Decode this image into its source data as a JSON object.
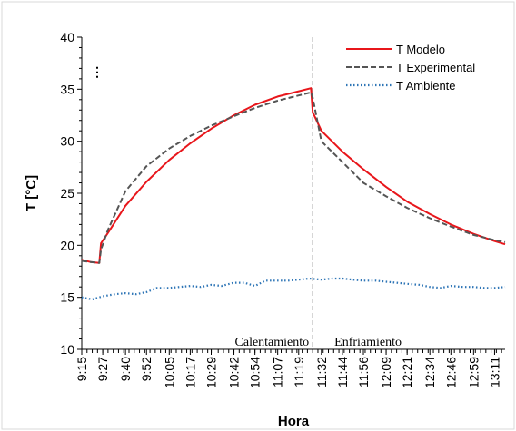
{
  "chart_data": {
    "type": "line",
    "xlabel": "Hora",
    "ylabel": "T [°C]",
    "ylim": [
      10,
      40
    ],
    "yticks": [
      10,
      15,
      20,
      25,
      30,
      35,
      40
    ],
    "x_tick_labels": [
      "9:15",
      "9:27",
      "9:40",
      "9:52",
      "10:05",
      "10:17",
      "10:29",
      "10:42",
      "10:54",
      "11:07",
      "11:19",
      "11:32",
      "11:44",
      "11:56",
      "12:09",
      "12:21",
      "12:34",
      "12:46",
      "12:59",
      "13:11"
    ],
    "x_time_range": [
      "9:15",
      "13:17"
    ],
    "grid": false,
    "legend_position": "top-right",
    "divider_time": "11:27",
    "annotations": [
      "Calentamiento",
      "Enfriamiento"
    ],
    "vertical_ellipsis": "⋮",
    "series": [
      {
        "name": "T Modelo",
        "color": "#e8161b",
        "style": "solid",
        "x": [
          "9:15",
          "9:20",
          "9:25",
          "9:26",
          "9:30",
          "9:40",
          "9:52",
          "10:05",
          "10:17",
          "10:29",
          "10:42",
          "10:54",
          "11:07",
          "11:19",
          "11:26",
          "11:27",
          "11:32",
          "11:44",
          "11:56",
          "12:09",
          "12:21",
          "12:34",
          "12:46",
          "12:59",
          "13:11",
          "13:17"
        ],
        "y": [
          18.6,
          18.4,
          18.3,
          20.2,
          21.2,
          23.8,
          26.1,
          28.2,
          29.8,
          31.2,
          32.5,
          33.5,
          34.3,
          34.8,
          35.1,
          32.8,
          31.0,
          29.0,
          27.3,
          25.6,
          24.2,
          23.0,
          22.0,
          21.1,
          20.4,
          20.1
        ]
      },
      {
        "name": "T Experimental",
        "color": "#555555",
        "style": "dashed",
        "x": [
          "9:15",
          "9:20",
          "9:25",
          "9:26",
          "9:30",
          "9:40",
          "9:52",
          "10:05",
          "10:17",
          "10:29",
          "10:42",
          "10:54",
          "11:07",
          "11:19",
          "11:26",
          "11:27",
          "11:32",
          "11:44",
          "11:56",
          "12:09",
          "12:21",
          "12:34",
          "12:46",
          "12:59",
          "13:11",
          "13:17"
        ],
        "y": [
          18.5,
          18.4,
          18.3,
          19.6,
          21.5,
          25.2,
          27.6,
          29.3,
          30.5,
          31.5,
          32.4,
          33.2,
          33.9,
          34.4,
          34.7,
          34.2,
          30.0,
          28.0,
          26.0,
          24.7,
          23.6,
          22.6,
          21.8,
          21.0,
          20.5,
          20.3
        ]
      },
      {
        "name": "T Ambiente",
        "color": "#2e75b6",
        "style": "dotted",
        "x": [
          "9:15",
          "9:21",
          "9:27",
          "9:34",
          "9:40",
          "9:46",
          "9:52",
          "9:58",
          "10:05",
          "10:11",
          "10:17",
          "10:23",
          "10:29",
          "10:35",
          "10:42",
          "10:48",
          "10:54",
          "11:00",
          "11:07",
          "11:13",
          "11:19",
          "11:25",
          "11:32",
          "11:38",
          "11:44",
          "11:50",
          "11:56",
          "12:03",
          "12:09",
          "12:15",
          "12:21",
          "12:28",
          "12:34",
          "12:40",
          "12:46",
          "12:53",
          "12:59",
          "13:05",
          "13:11",
          "13:17"
        ],
        "y": [
          15.0,
          14.8,
          15.1,
          15.3,
          15.4,
          15.3,
          15.5,
          15.9,
          15.9,
          16.0,
          16.1,
          16.0,
          16.2,
          16.1,
          16.4,
          16.4,
          16.1,
          16.6,
          16.6,
          16.6,
          16.7,
          16.8,
          16.7,
          16.8,
          16.8,
          16.7,
          16.6,
          16.6,
          16.5,
          16.4,
          16.3,
          16.2,
          16.0,
          15.9,
          16.1,
          16.0,
          16.0,
          15.9,
          15.9,
          16.0
        ]
      }
    ]
  }
}
